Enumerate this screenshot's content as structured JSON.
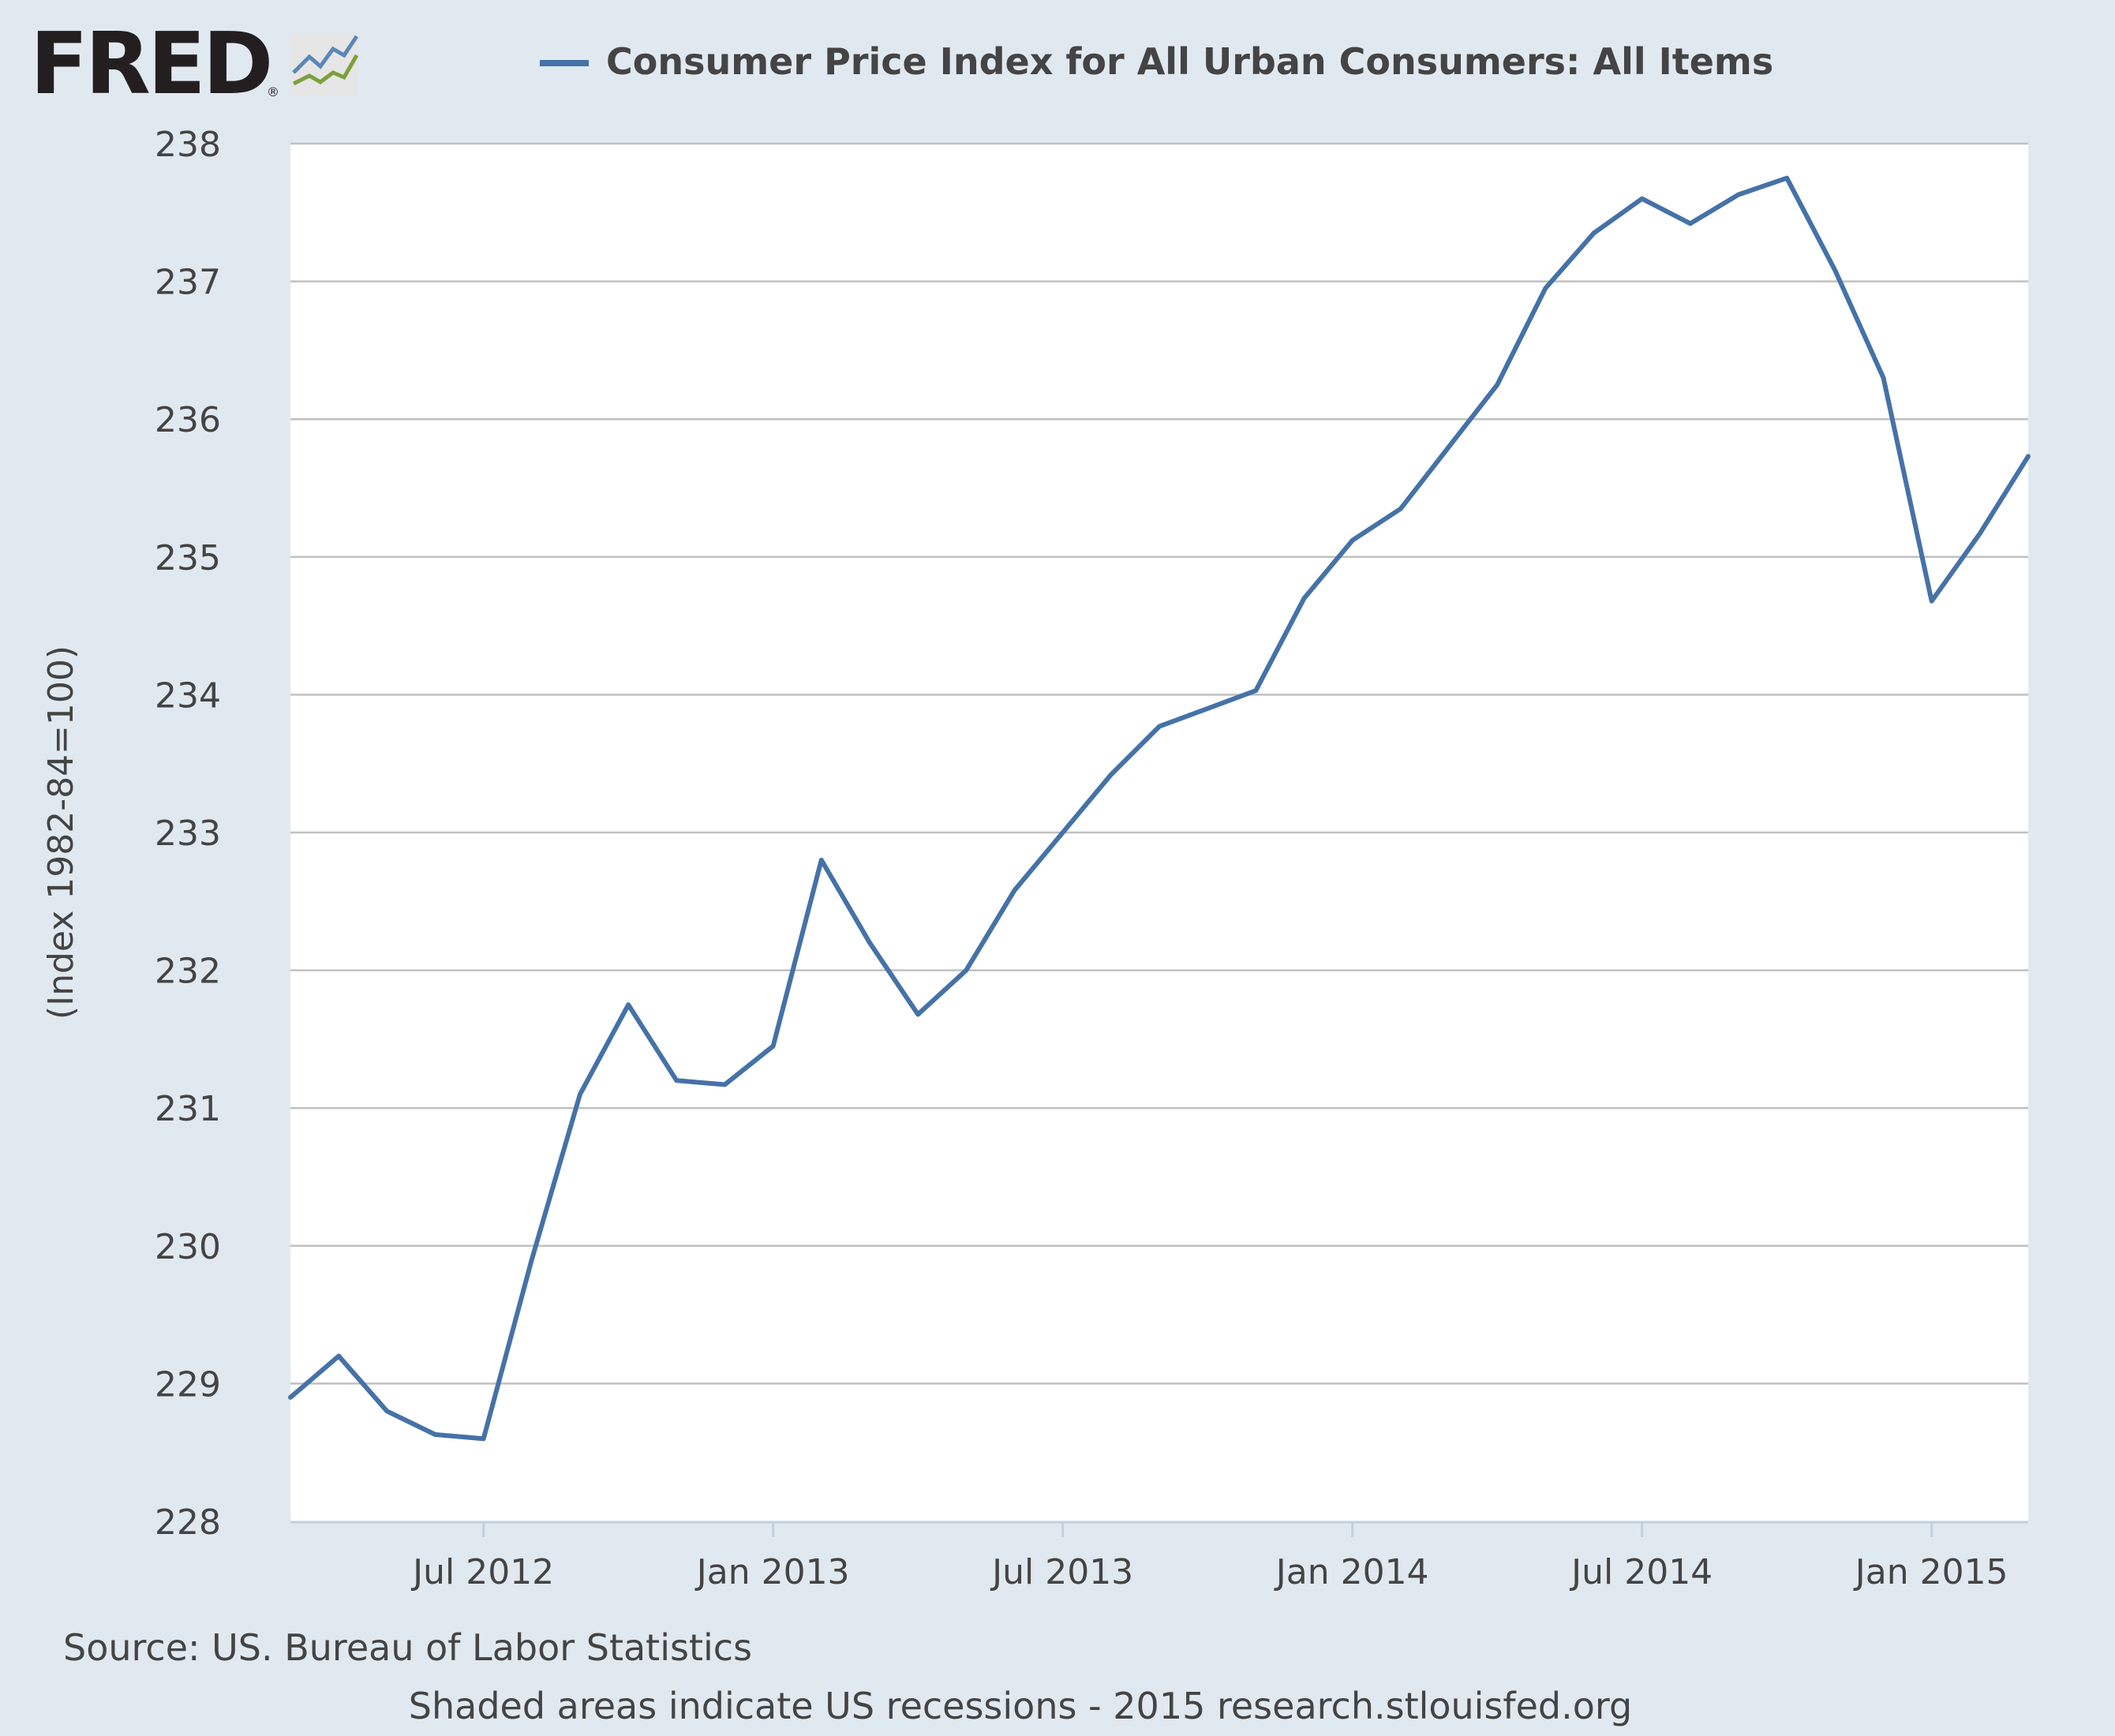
{
  "brand": {
    "name": "FRED",
    "registered_mark": "®"
  },
  "legend": {
    "label": "Consumer Price Index for All Urban Consumers: All Items",
    "position": "top-center"
  },
  "footer": {
    "source": "Source: US. Bureau of Labor Statistics",
    "note": "Shaded areas indicate US recessions - 2015 research.stlouisfed.org"
  },
  "colors": {
    "page_background": "#e1e9f0",
    "plot_background": "#ffffff",
    "series": "#4572a7",
    "grid": "#c0c0c0",
    "text": "#444444",
    "logo_text": "#231f20"
  },
  "icons": {
    "logo": "fred-line-chart-logo-icon"
  },
  "chart_data": {
    "type": "line",
    "title": "",
    "xlabel": "",
    "ylabel": "(Index 1982-84=100)",
    "ylim": [
      228,
      238
    ],
    "yticks": [
      228,
      229,
      230,
      231,
      232,
      233,
      234,
      235,
      236,
      237,
      238
    ],
    "xlim": [
      "2012-03",
      "2015-03"
    ],
    "xticks": [
      {
        "x": "2012-07",
        "label": "Jul 2012"
      },
      {
        "x": "2013-01",
        "label": "Jan 2013"
      },
      {
        "x": "2013-07",
        "label": "Jul 2013"
      },
      {
        "x": "2014-01",
        "label": "Jan 2014"
      },
      {
        "x": "2014-07",
        "label": "Jul 2014"
      },
      {
        "x": "2015-01",
        "label": "Jan 2015"
      }
    ],
    "grid": true,
    "legend": "top-center",
    "series": [
      {
        "name": "Consumer Price Index for All Urban Consumers: All Items",
        "points": [
          {
            "x": "2012-03",
            "y": 228.9
          },
          {
            "x": "2012-04",
            "y": 229.2
          },
          {
            "x": "2012-05",
            "y": 228.8
          },
          {
            "x": "2012-06",
            "y": 228.63
          },
          {
            "x": "2012-07",
            "y": 228.6
          },
          {
            "x": "2012-08",
            "y": 229.9
          },
          {
            "x": "2012-09",
            "y": 231.1
          },
          {
            "x": "2012-10",
            "y": 231.75
          },
          {
            "x": "2012-11",
            "y": 231.2
          },
          {
            "x": "2012-12",
            "y": 231.17
          },
          {
            "x": "2013-01",
            "y": 231.45
          },
          {
            "x": "2013-02",
            "y": 232.8
          },
          {
            "x": "2013-03",
            "y": 232.2
          },
          {
            "x": "2013-04",
            "y": 231.68
          },
          {
            "x": "2013-05",
            "y": 232.0
          },
          {
            "x": "2013-06",
            "y": 232.58
          },
          {
            "x": "2013-07",
            "y": 233.0
          },
          {
            "x": "2013-08",
            "y": 233.42
          },
          {
            "x": "2013-09",
            "y": 233.77
          },
          {
            "x": "2013-10",
            "y": 233.9
          },
          {
            "x": "2013-11",
            "y": 234.03
          },
          {
            "x": "2013-12",
            "y": 234.7
          },
          {
            "x": "2014-01",
            "y": 235.12
          },
          {
            "x": "2014-02",
            "y": 235.35
          },
          {
            "x": "2014-03",
            "y": 235.8
          },
          {
            "x": "2014-04",
            "y": 236.25
          },
          {
            "x": "2014-05",
            "y": 236.95
          },
          {
            "x": "2014-06",
            "y": 237.35
          },
          {
            "x": "2014-07",
            "y": 237.6
          },
          {
            "x": "2014-08",
            "y": 237.42
          },
          {
            "x": "2014-09",
            "y": 237.63
          },
          {
            "x": "2014-10",
            "y": 237.75
          },
          {
            "x": "2014-11",
            "y": 237.08
          },
          {
            "x": "2014-12",
            "y": 236.3
          },
          {
            "x": "2015-01",
            "y": 234.68
          },
          {
            "x": "2015-02",
            "y": 235.17
          },
          {
            "x": "2015-03",
            "y": 235.73
          }
        ]
      }
    ]
  }
}
